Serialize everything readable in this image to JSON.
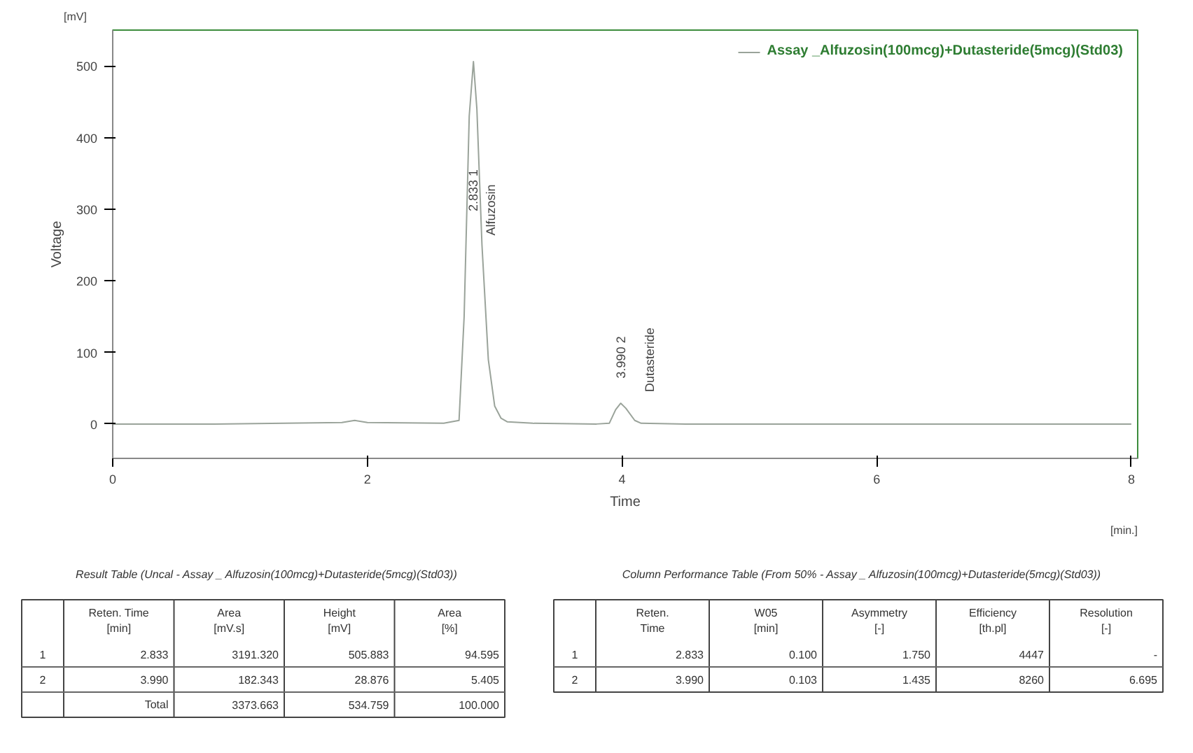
{
  "chart_data": [
    {
      "type": "line",
      "xlabel": "Time",
      "ylabel": "Voltage",
      "xlim": [
        0,
        8.05
      ],
      "ylim": [
        -48,
        550
      ],
      "xticks": [
        0,
        2,
        4,
        6,
        8
      ],
      "yticks": [
        0,
        100,
        200,
        300,
        400,
        500
      ],
      "grid": false,
      "legend": "top right",
      "marker": "none",
      "series": [
        {
          "name": "Assay _Alfuzosin(100mcg)+Dutasteride(5mcg)(Std03)",
          "color": "#9aa39a",
          "x": [
            0,
            0.8,
            1.8,
            1.9,
            2.0,
            2.6,
            2.72,
            2.76,
            2.8,
            2.833,
            2.86,
            2.9,
            2.95,
            3.0,
            3.05,
            3.1,
            3.3,
            3.8,
            3.9,
            3.95,
            3.99,
            4.03,
            4.1,
            4.15,
            4.5,
            8
          ],
          "values": [
            0,
            0,
            2,
            5,
            2,
            1,
            5,
            150,
            430,
            506,
            440,
            250,
            90,
            25,
            8,
            3,
            1,
            0,
            1,
            20,
            29,
            22,
            5,
            1,
            0,
            0
          ]
        }
      ],
      "annotations": [
        "[mV]",
        "[min.]",
        "2.833  1",
        "Alfuzosin",
        "3.990  2",
        "Dutasteride"
      ]
    },
    {
      "type": "other",
      "title": "Result Table (Uncal - Assay _ Alfuzosin(100mcg)+Dutasteride(5mcg)(Std03))",
      "categories": [
        "Reten. Time\n[min]",
        "Area\n[mV.s]",
        "Height\n[mV]",
        "Area\n[%]"
      ],
      "y_categories": [
        "1",
        "2",
        null
      ],
      "cell_labels": [
        [
          "2.833",
          "3191.320",
          "505.883",
          "94.595"
        ],
        [
          "3.990",
          "182.343",
          "28.876",
          "5.405"
        ],
        [
          "Total",
          "3373.663",
          "534.759",
          "100.000"
        ]
      ]
    },
    {
      "type": "other",
      "title": "Column Performance Table (From 50% - Assay _ Alfuzosin(100mcg)+Dutasteride(5mcg)(Std03))",
      "categories": [
        "Reten.\nTime",
        "W05\n[min]",
        "Asymmetry\n[-]",
        "Efficiency\n[th.pl]",
        "Resolution\n[-]"
      ],
      "y_categories": [
        "1",
        "2"
      ],
      "cell_labels": [
        [
          "2.833",
          "0.100",
          "1.750",
          "4447",
          "-"
        ],
        [
          "3.990",
          "0.103",
          "1.435",
          "8260",
          "6.695"
        ]
      ]
    }
  ]
}
